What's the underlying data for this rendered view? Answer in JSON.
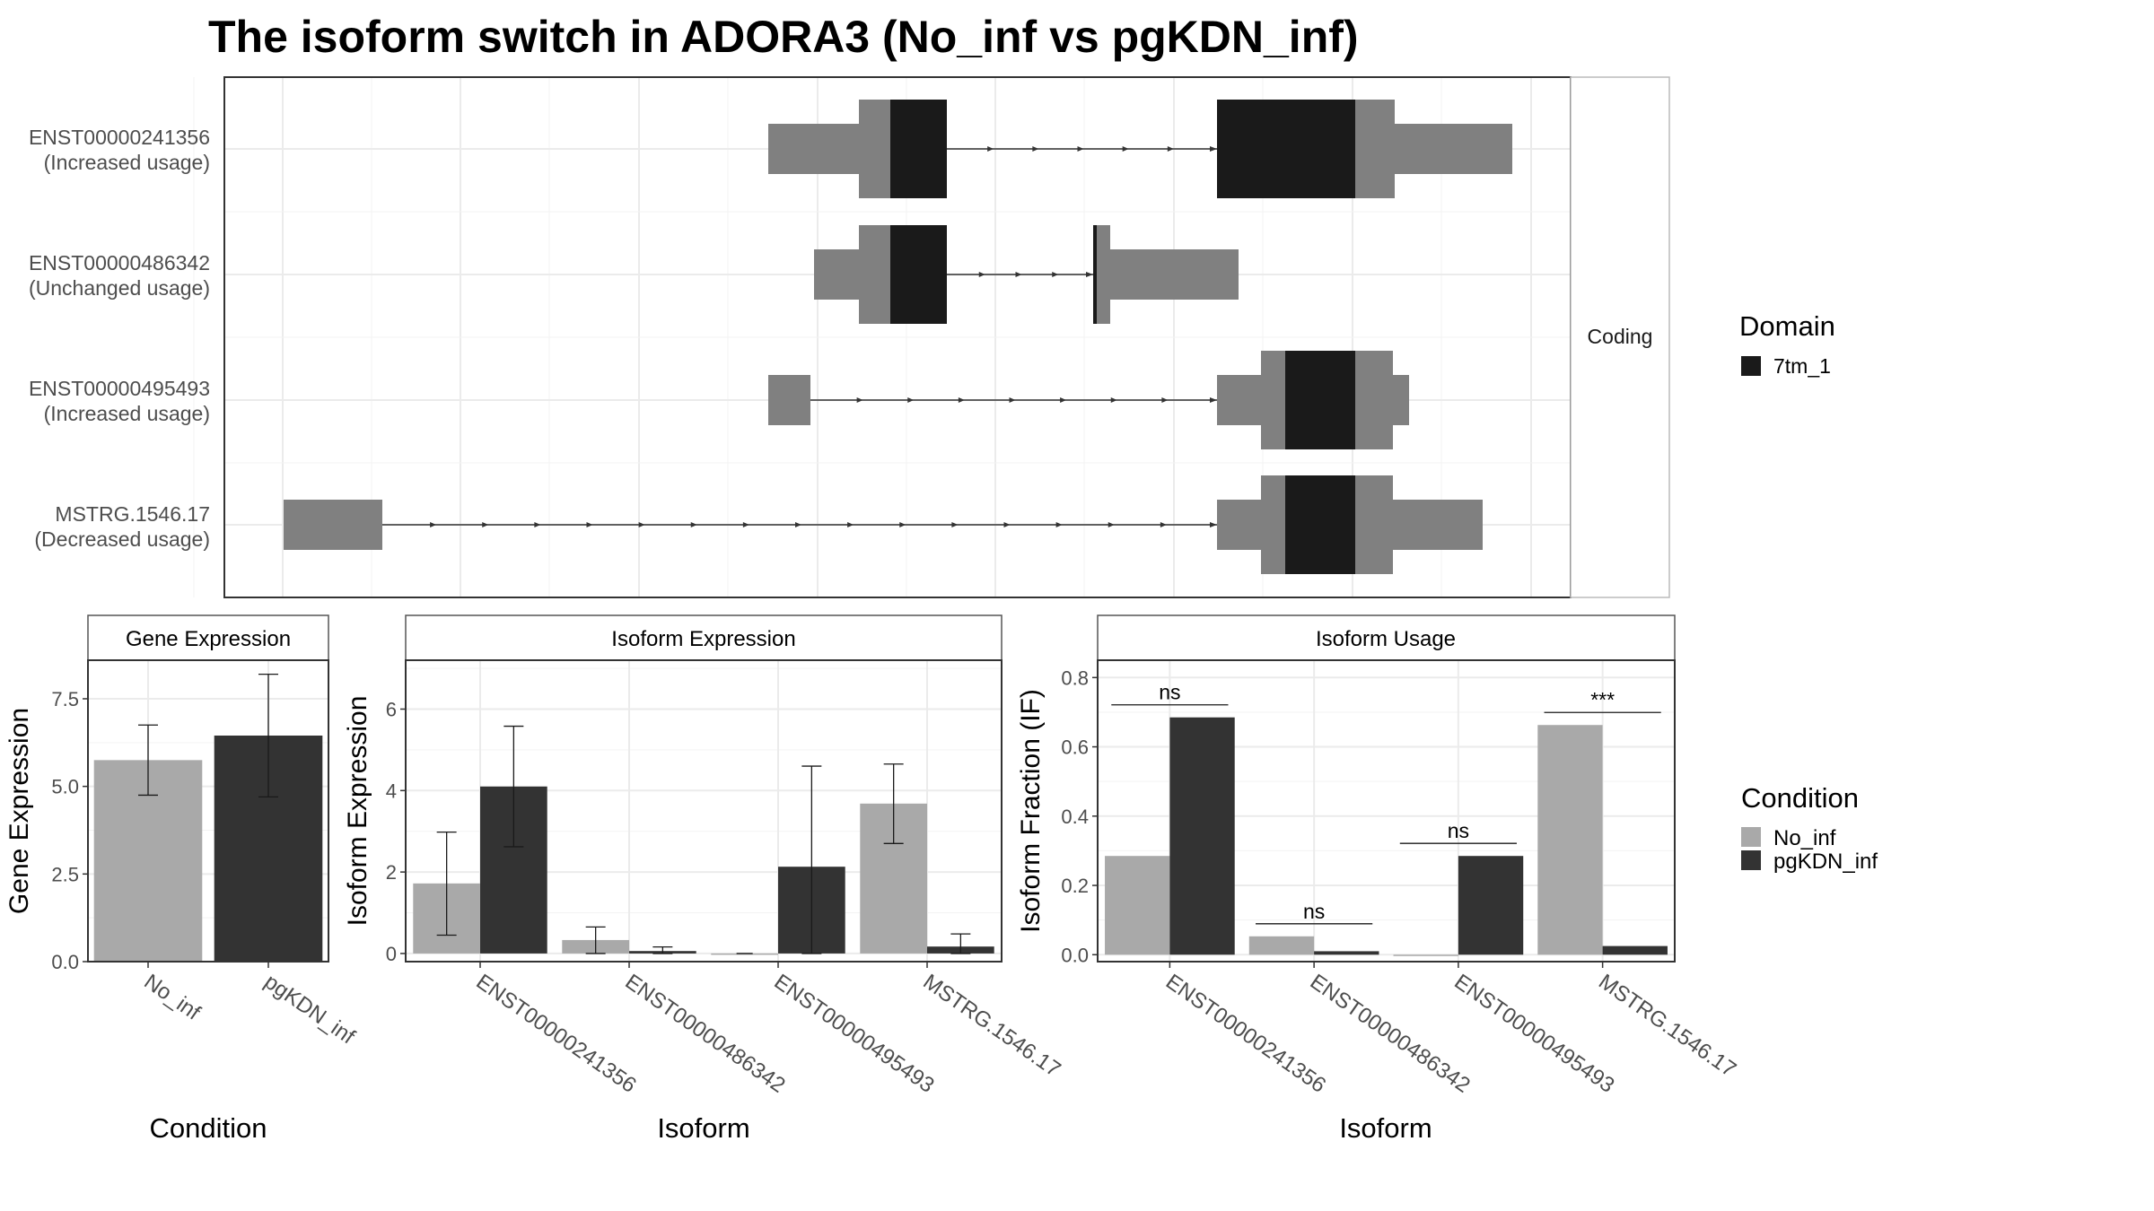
{
  "title": "The isoform switch in ADORA3 (No_inf vs pgKDN_inf)",
  "chart_data": [
    {
      "type": "structure",
      "panel_strip": "Coding",
      "isoforms": [
        {
          "id": "ENST00000241356",
          "usage": "(Increased usage)"
        },
        {
          "id": "ENST00000486342",
          "usage": "(Unchanged usage)"
        },
        {
          "id": "ENST00000495493",
          "usage": "(Increased usage)"
        },
        {
          "id": "MSTRG.1546.17",
          "usage": "(Decreased usage)"
        }
      ],
      "legend": {
        "title": "Domain",
        "entries": [
          {
            "label": "7tm_1",
            "color": "#1a1a1a"
          }
        ]
      }
    },
    {
      "type": "bar",
      "strip": "Gene Expression",
      "categories": [
        "No_inf",
        "pgKDN_inf"
      ],
      "values": [
        5.75,
        6.45
      ],
      "error_low": [
        4.75,
        4.7
      ],
      "error_high": [
        6.75,
        8.2
      ],
      "xlabel": "Condition",
      "ylabel": "Gene Expression",
      "ylim": [
        0,
        8.6
      ],
      "yticks": [
        "0.0",
        "2.5",
        "5.0",
        "7.5"
      ]
    },
    {
      "type": "bar",
      "strip": "Isoform Expression",
      "categories": [
        "ENST00000241356",
        "ENST00000486342",
        "ENST00000495493",
        "MSTRG.1546.17"
      ],
      "series": [
        {
          "name": "No_inf",
          "values": [
            1.72,
            0.33,
            0.0,
            3.68
          ],
          "error_low": [
            0.45,
            0.0,
            0.0,
            2.7
          ],
          "error_high": [
            2.98,
            0.65,
            0.0,
            4.65
          ]
        },
        {
          "name": "pgKDN_inf",
          "values": [
            4.1,
            0.06,
            2.13,
            0.17
          ],
          "error_low": [
            2.62,
            0.0,
            0.0,
            0.0
          ],
          "error_high": [
            5.58,
            0.16,
            4.6,
            0.48
          ]
        }
      ],
      "xlabel": "Isoform",
      "ylabel": "Isoform Expression",
      "ylim": [
        -0.2,
        7.2
      ],
      "yticks": [
        "0",
        "2",
        "4",
        "6"
      ]
    },
    {
      "type": "bar",
      "strip": "Isoform Usage",
      "categories": [
        "ENST00000241356",
        "ENST00000486342",
        "ENST00000495493",
        "MSTRG.1546.17"
      ],
      "series": [
        {
          "name": "No_inf",
          "values": [
            0.285,
            0.053,
            0.0,
            0.663
          ]
        },
        {
          "name": "pgKDN_inf",
          "values": [
            0.685,
            0.01,
            0.285,
            0.025
          ]
        }
      ],
      "significance": [
        "ns",
        "ns",
        "ns",
        "***"
      ],
      "xlabel": "Isoform",
      "ylabel": "Isoform Fraction (IF)",
      "ylim": [
        -0.02,
        0.85
      ],
      "yticks": [
        "0.0",
        "0.2",
        "0.4",
        "0.6",
        "0.8"
      ]
    }
  ],
  "condition_legend": {
    "title": "Condition",
    "entries": [
      {
        "label": "No_inf",
        "color": "#a9a9a9"
      },
      {
        "label": "pgKDN_inf",
        "color": "#333333"
      }
    ]
  }
}
